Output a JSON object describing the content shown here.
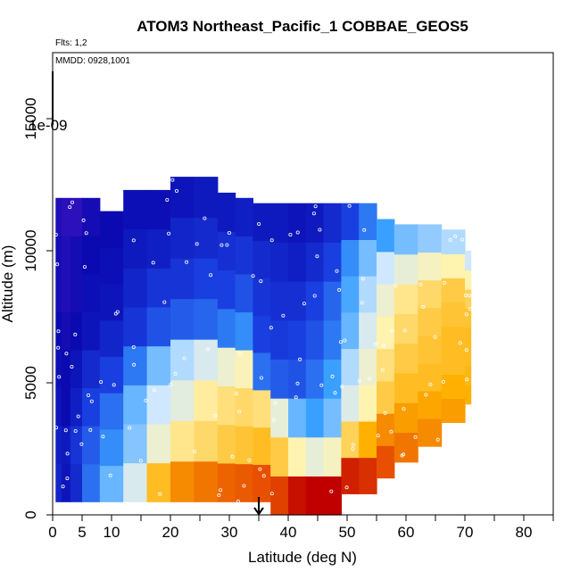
{
  "chart_data": {
    "type": "heatmap",
    "title": "ATOM3 Northeast_Pacific_1 COBBAE_GEOS5",
    "annotations": {
      "flights": "Flts: 1,2",
      "dates": "MMDD: 0928,1001",
      "colorbar_label": "1e-09"
    },
    "xlabel": "Latitude (deg N)",
    "ylabel": "Altitude (m)",
    "xlim": [
      0,
      85
    ],
    "ylim": [
      0,
      17500
    ],
    "x_ticks": [
      0,
      5,
      10,
      20,
      30,
      40,
      50,
      60,
      70,
      80
    ],
    "x_tick_labels": [
      "0",
      "5",
      "10",
      "20",
      "30",
      "40",
      "50",
      "60",
      "70",
      "80"
    ],
    "x_minor_ticks": [
      15,
      25,
      35,
      45,
      55,
      65,
      75,
      85
    ],
    "y_ticks": [
      0,
      5000,
      10000,
      15000
    ],
    "y_tick_labels": [
      "0",
      "5000",
      "10000",
      "15000"
    ],
    "marker_latitude": 35,
    "colormap": [
      "#7a1fd6",
      "#0a0ab0",
      "#1a3fe0",
      "#3aa0ff",
      "#cfe8ff",
      "#fff3b0",
      "#ffb000",
      "#e85000",
      "#c00000"
    ],
    "grid": false,
    "legend": "none",
    "profiles": [
      {
        "lat": [
          0.5,
          1.5
        ],
        "alt": [
          500,
          12000
        ],
        "v": [
          1.5,
          1.4,
          1.2,
          1.1,
          1.0,
          0.9,
          0.9,
          0.8
        ]
      },
      {
        "lat": [
          1.5,
          3
        ],
        "alt": [
          500,
          12000
        ],
        "v": [
          1.2,
          1.3,
          1.0,
          1.0,
          0.9,
          0.8,
          0.8,
          0.7
        ]
      },
      {
        "lat": [
          3,
          5
        ],
        "alt": [
          500,
          12000
        ],
        "v": [
          1.6,
          1.8,
          1.4,
          1.2,
          1.0,
          0.9,
          0.9,
          0.7
        ]
      },
      {
        "lat": [
          5,
          8
        ],
        "alt": [
          500,
          12000
        ],
        "v": [
          2.5,
          2.3,
          2.0,
          1.6,
          1.2,
          1.1,
          1.0,
          0.9
        ]
      },
      {
        "lat": [
          8,
          12
        ],
        "alt": [
          500,
          11500
        ],
        "v": [
          3.3,
          2.8,
          2.5,
          2.0,
          1.5,
          1.2,
          1.1,
          1.0
        ]
      },
      {
        "lat": [
          12,
          16
        ],
        "alt": [
          500,
          12300
        ],
        "v": [
          4.2,
          3.5,
          3.3,
          2.6,
          1.8,
          1.5,
          1.3,
          1.1
        ]
      },
      {
        "lat": [
          16,
          20
        ],
        "alt": [
          500,
          12300
        ],
        "v": [
          5.8,
          4.6,
          4.0,
          3.4,
          2.2,
          1.8,
          1.4,
          1.1
        ]
      },
      {
        "lat": [
          20,
          24
        ],
        "alt": [
          500,
          12800
        ],
        "v": [
          6.4,
          5.2,
          4.4,
          3.8,
          2.3,
          1.8,
          1.5,
          1.2
        ]
      },
      {
        "lat": [
          24,
          28
        ],
        "alt": [
          500,
          12800
        ],
        "v": [
          6.6,
          5.4,
          5.1,
          4.2,
          2.4,
          2.0,
          1.6,
          1.3
        ]
      },
      {
        "lat": [
          28,
          31
        ],
        "alt": [
          500,
          12200
        ],
        "v": [
          6.8,
          5.6,
          5.3,
          4.6,
          2.6,
          2.0,
          1.7,
          1.3
        ]
      },
      {
        "lat": [
          31,
          34
        ],
        "alt": [
          500,
          12000
        ],
        "v": [
          6.9,
          5.7,
          5.4,
          4.9,
          2.8,
          2.2,
          1.8,
          1.4
        ]
      },
      {
        "lat": [
          34,
          37
        ],
        "alt": [
          500,
          11800
        ],
        "v": [
          7.0,
          5.8,
          5.3,
          2.5,
          2.0,
          1.8,
          1.6,
          1.3
        ]
      },
      {
        "lat": [
          37,
          40
        ],
        "alt": [
          0,
          11800
        ],
        "v": [
          7.2,
          5.6,
          4.5,
          2.3,
          1.9,
          1.7,
          1.5,
          1.3
        ]
      },
      {
        "lat": [
          40,
          43
        ],
        "alt": [
          0,
          11800
        ],
        "v": [
          7.8,
          5.0,
          3.3,
          2.2,
          2.0,
          1.7,
          1.4,
          1.2
        ]
      },
      {
        "lat": [
          43,
          46
        ],
        "alt": [
          0,
          11800
        ],
        "v": [
          8.2,
          4.5,
          3.0,
          2.5,
          2.2,
          2.0,
          1.6,
          1.3
        ]
      },
      {
        "lat": [
          46,
          49
        ],
        "alt": [
          0,
          11800
        ],
        "v": [
          8.2,
          4.8,
          3.4,
          3.0,
          2.6,
          2.4,
          2.0,
          1.6
        ]
      },
      {
        "lat": [
          49,
          52
        ],
        "alt": [
          800,
          11800
        ],
        "v": [
          7.6,
          5.5,
          4.3,
          3.8,
          3.3,
          3.1,
          2.8,
          2.0
        ]
      },
      {
        "lat": [
          52,
          55
        ],
        "alt": [
          800,
          11800
        ],
        "v": [
          7.4,
          6.0,
          5.0,
          4.6,
          4.2,
          3.8,
          3.4,
          2.6
        ]
      },
      {
        "lat": [
          55,
          58
        ],
        "alt": [
          1400,
          11200
        ],
        "v": [
          7.0,
          6.4,
          5.6,
          5.3,
          5.0,
          4.6,
          4.0,
          3.0
        ]
      },
      {
        "lat": [
          58,
          62
        ],
        "alt": [
          2000,
          11000
        ],
        "v": [
          6.6,
          6.2,
          5.8,
          5.6,
          5.4,
          5.2,
          4.5,
          3.4
        ]
      },
      {
        "lat": [
          62,
          66
        ],
        "alt": [
          2600,
          11000
        ],
        "v": [
          6.4,
          6.1,
          5.8,
          5.7,
          5.6,
          5.4,
          4.8,
          3.6
        ]
      },
      {
        "lat": [
          66,
          70
        ],
        "alt": [
          3500,
          10800
        ],
        "v": [
          6.2,
          6.0,
          5.8,
          5.8,
          5.7,
          5.6,
          5.0,
          3.8
        ]
      },
      {
        "lat": [
          70,
          71
        ],
        "alt": [
          4200,
          10000
        ],
        "v": [
          6.0,
          5.9,
          5.8,
          5.8,
          5.7,
          5.5,
          5.0,
          4.0
        ]
      }
    ]
  }
}
